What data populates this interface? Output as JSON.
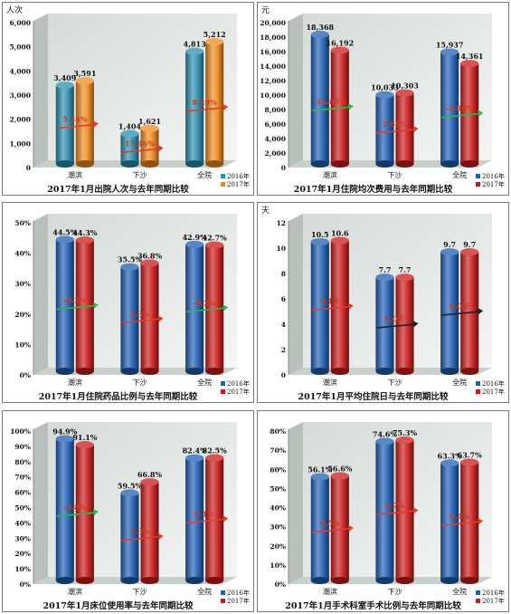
{
  "chart_data": [
    {
      "type": "bar",
      "title": "2017年1月出院人次与去年同期比较",
      "ylabel": "人次",
      "ylim": [
        0,
        6000
      ],
      "yticks": [
        "0",
        "1,000",
        "2,000",
        "3,000",
        "4,000",
        "5,000",
        "6,000"
      ],
      "categories": [
        "潮滨",
        "下沙",
        "全院"
      ],
      "series": [
        {
          "name": "2016年",
          "values": [
            3409,
            1404,
            4813
          ],
          "labels": [
            "3,409",
            "1,404",
            "4,813"
          ],
          "color": "#2b8fb0"
        },
        {
          "name": "2017年",
          "values": [
            3591,
            1621,
            5212
          ],
          "labels": [
            "3,591",
            "1,621",
            "5,212"
          ],
          "color": "#f08a1c"
        }
      ],
      "changes": [
        "5.34%",
        "15.46%",
        "8.29%"
      ],
      "change_arrow_colors": [
        "#e83a2a",
        "#e83a2a",
        "#e83a2a"
      ],
      "legend_position": "bottom-right"
    },
    {
      "type": "bar",
      "title": "2017年1月住院均次费用与去年同期比较",
      "ylabel": "元",
      "ylim": [
        0,
        20000
      ],
      "yticks": [
        "0",
        "2,000",
        "4,000",
        "6,000",
        "8,000",
        "10,000",
        "12,000",
        "14,000",
        "16,000",
        "18,000",
        "20,000"
      ],
      "categories": [
        "潮滨",
        "下沙",
        "全院"
      ],
      "series": [
        {
          "name": "2016年",
          "values": [
            18368,
            10033,
            15937
          ],
          "labels": [
            "18,368",
            "10,033",
            "15,937"
          ],
          "color": "#1f5fb4"
        },
        {
          "name": "2017年",
          "values": [
            16192,
            10303,
            14361
          ],
          "labels": [
            "16,192",
            "10,303",
            "14,361"
          ],
          "color": "#cc1a1a"
        }
      ],
      "changes": [
        "-11.85%",
        "2.69%",
        "-9.89%"
      ],
      "change_arrow_colors": [
        "#2db84a",
        "#e83a2a",
        "#2db84a"
      ],
      "legend_position": "bottom-right"
    },
    {
      "type": "bar",
      "title": "2017年1月住院药品比例与去年同期比较",
      "ylabel": "",
      "ylim": [
        0,
        50
      ],
      "yticks": [
        "0%",
        "10%",
        "20%",
        "30%",
        "40%",
        "50%"
      ],
      "categories": [
        "潮滨",
        "下沙",
        "全院"
      ],
      "series": [
        {
          "name": "2016年",
          "values": [
            44.5,
            35.5,
            42.9
          ],
          "labels": [
            "44.5%",
            "35.5%",
            "42.9%"
          ],
          "color": "#1f5fb4"
        },
        {
          "name": "2017年",
          "values": [
            44.3,
            36.8,
            42.7
          ],
          "labels": [
            "44.3%",
            "36.8%",
            "42.7%"
          ],
          "color": "#cc1a1a"
        }
      ],
      "changes": [
        "-0.2%",
        "1.3%",
        "-0.2%"
      ],
      "change_arrow_colors": [
        "#2db84a",
        "#e83a2a",
        "#2db84a"
      ],
      "legend_position": "bottom-right"
    },
    {
      "type": "bar",
      "title": "2017年1月平均住院日与去年同期比较",
      "ylabel": "天",
      "ylim": [
        0,
        12
      ],
      "yticks": [
        "0",
        "2",
        "4",
        "6",
        "8",
        "10",
        "12"
      ],
      "categories": [
        "潮滨",
        "下沙",
        "全院"
      ],
      "series": [
        {
          "name": "2016年",
          "values": [
            10.5,
            7.7,
            9.7
          ],
          "labels": [
            "10.5",
            "7.7",
            "9.7"
          ],
          "color": "#1f5fb4"
        },
        {
          "name": "2017年",
          "values": [
            10.6,
            7.7,
            9.7
          ],
          "labels": [
            "10.6",
            "7.7",
            "9.7"
          ],
          "color": "#cc1a1a"
        }
      ],
      "changes": [
        "0.1天",
        "0.0天",
        "0.0天"
      ],
      "change_arrow_colors": [
        "#e83a2a",
        "#222222",
        "#222222"
      ],
      "legend_position": "bottom-right"
    },
    {
      "type": "bar",
      "title": "2017年1月床位使用率与去年同期比较",
      "ylabel": "",
      "ylim": [
        0,
        100
      ],
      "yticks": [
        "0%",
        "10%",
        "20%",
        "30%",
        "40%",
        "50%",
        "60%",
        "70%",
        "80%",
        "90%",
        "100%"
      ],
      "categories": [
        "潮滨",
        "下沙",
        "全院"
      ],
      "series": [
        {
          "name": "2016年",
          "values": [
            94.9,
            59.5,
            82.4
          ],
          "labels": [
            "94.9%",
            "59.5%",
            "82.4%"
          ],
          "color": "#1f5fb4"
        },
        {
          "name": "2017年",
          "values": [
            91.1,
            66.8,
            82.5
          ],
          "labels": [
            "91.1%",
            "66.8%",
            "82.5%"
          ],
          "color": "#cc1a1a"
        }
      ],
      "changes": [
        "-3.8%",
        "7.3%",
        "0.1%"
      ],
      "change_arrow_colors": [
        "#2db84a",
        "#e83a2a",
        "#e83a2a"
      ],
      "legend_position": "bottom-right"
    },
    {
      "type": "bar",
      "title": "2017年1月手术科室手术比例与去年同期比较",
      "ylabel": "",
      "ylim": [
        0,
        80
      ],
      "yticks": [
        "0%",
        "10%",
        "20%",
        "30%",
        "40%",
        "50%",
        "60%",
        "70%",
        "80%"
      ],
      "categories": [
        "潮滨",
        "下沙",
        "全院"
      ],
      "series": [
        {
          "name": "2016年",
          "values": [
            56.1,
            74.6,
            63.3
          ],
          "labels": [
            "56.1%",
            "74.6%",
            "63.3%"
          ],
          "color": "#1f5fb4"
        },
        {
          "name": "2017年",
          "values": [
            56.6,
            75.3,
            63.7
          ],
          "labels": [
            "56.6%",
            "75.3%",
            "63.7%"
          ],
          "color": "#cc1a1a"
        }
      ],
      "changes": [
        "0.5%",
        "0.7%",
        "0.4%"
      ],
      "change_arrow_colors": [
        "#e83a2a",
        "#e83a2a",
        "#e83a2a"
      ],
      "legend_position": "bottom-right"
    }
  ]
}
